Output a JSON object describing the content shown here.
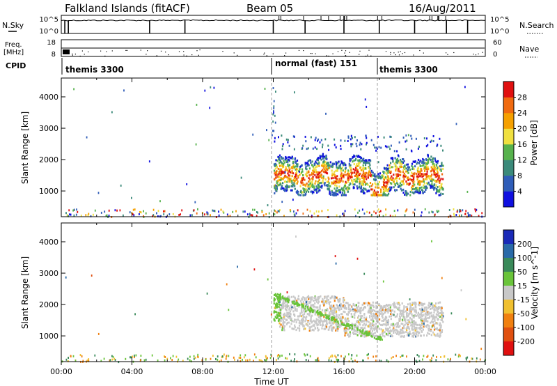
{
  "header": {
    "station": "Falkland Islands (fitACF)",
    "beam": "Beam 05",
    "date": "16/Aug/2011"
  },
  "noise_panel": {
    "left_label": "N.Sky",
    "right_label": "N.Search",
    "left_ticks": [
      "10^5",
      "10^0"
    ],
    "right_ticks": [
      "10^5",
      "10^0"
    ],
    "spike_hours": [
      0.2,
      0.4,
      5.0,
      7.0,
      12.0,
      13.8,
      16.0,
      18.0,
      20.0,
      21.8,
      23.0
    ]
  },
  "freq_panel": {
    "left_label_1": "Freq.",
    "left_label_2": "[MHz]",
    "right_label": "Nave",
    "left_ticks": [
      "18",
      "8"
    ],
    "right_ticks": [
      "60",
      "0"
    ]
  },
  "cpid": {
    "label": "CPID",
    "segments": [
      {
        "text": "themis 3300",
        "start_hour": 0
      },
      {
        "text": "normal (fast) 151",
        "start_hour": 12
      },
      {
        "text": "themis 3300",
        "start_hour": 18
      }
    ]
  },
  "x_axis": {
    "label": "Time UT",
    "tick_labels": [
      "00:00",
      "04:00",
      "08:00",
      "12:00",
      "16:00",
      "20:00",
      "00:00"
    ],
    "tick_hours": [
      0,
      4,
      8,
      12,
      16,
      20,
      24
    ]
  },
  "chart_data": [
    {
      "type": "heatmap",
      "name": "power",
      "ylabel": "Slant Range [km]",
      "y_ticks": [
        1000,
        2000,
        3000,
        4000
      ],
      "ylim": [
        180,
        4600
      ],
      "xlim": [
        0,
        24
      ],
      "colorbar": {
        "label": "Power [dB]",
        "tick_labels": [
          "4",
          "8",
          "12",
          "16",
          "20",
          "24",
          "28"
        ],
        "colors": [
          "#1010e0",
          "#2f5db8",
          "#3b8a7a",
          "#57b24d",
          "#f0e040",
          "#f5a000",
          "#f06a10",
          "#e01010"
        ]
      },
      "scatter_band": {
        "hour_start": 12,
        "hour_end": 21.6,
        "range_low": 900,
        "range_high": 2600,
        "peak_range": 1500
      }
    },
    {
      "type": "heatmap",
      "name": "velocity",
      "ylabel": "Slant Range [km]",
      "y_ticks": [
        1000,
        2000,
        3000,
        4000
      ],
      "ylim": [
        180,
        4600
      ],
      "xlim": [
        0,
        24
      ],
      "colorbar": {
        "label": "Velocity [m s^-1]",
        "tick_labels": [
          "200",
          "100",
          "50",
          "15",
          "-15",
          "-50",
          "-100",
          "-200"
        ],
        "colors": [
          "#1a2ab8",
          "#2a6aa8",
          "#3a8a5a",
          "#6ac43a",
          "#c8c8c8",
          "#f0c030",
          "#f08010",
          "#e05010",
          "#e01010"
        ]
      },
      "scatter_band": {
        "hour_start": 12,
        "hour_end": 21.6,
        "range_low": 900,
        "range_high": 2600,
        "dominant": "ground"
      }
    }
  ]
}
